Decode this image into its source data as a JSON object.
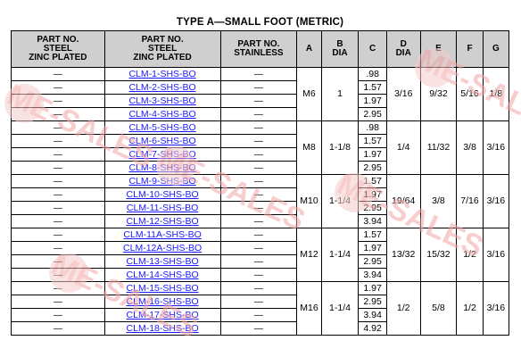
{
  "title": "TYPE A—SMALL FOOT (METRIC)",
  "headers": {
    "steel_zinc": [
      "PART NO.",
      "STEEL",
      "ZINC PLATED"
    ],
    "steel_zinc_link": [
      "PART NO.",
      "STEEL",
      "ZINC PLATED"
    ],
    "stainless": [
      "PART NO.",
      "STAINLESS"
    ],
    "a": "A",
    "b": [
      "B",
      "DIA"
    ],
    "c": "C",
    "d": [
      "D",
      "DIA"
    ],
    "e": "E",
    "f": "F",
    "g": "G"
  },
  "dash": "—",
  "groups": [
    {
      "a": "M6",
      "b": "1",
      "d": "3/16",
      "e": "9/32",
      "f": "5/16",
      "g": "1/8",
      "rows": [
        {
          "part": "CLM-1-SHS-BO",
          "c": ".98"
        },
        {
          "part": "CLM-2-SHS-BO",
          "c": "1.57"
        },
        {
          "part": "CLM-3-SHS-BO",
          "c": "1.97"
        },
        {
          "part": "CLM-4-SHS-BO",
          "c": "2.95"
        }
      ]
    },
    {
      "a": "M8",
      "b": "1-1/8",
      "d": "1/4",
      "e": "11/32",
      "f": "3/8",
      "g": "3/16",
      "rows": [
        {
          "part": "CLM-5-SHS-BO",
          "c": ".98"
        },
        {
          "part": "CLM-6-SHS-BO",
          "c": "1.57"
        },
        {
          "part": "CLM-7-SHS-BO",
          "c": "1.97"
        },
        {
          "part": "CLM-8-SHS-BO",
          "c": "2.95"
        }
      ]
    },
    {
      "a": "M10",
      "b": "1-1/4",
      "d": "19/64",
      "e": "3/8",
      "f": "7/16",
      "g": "3/16",
      "rows": [
        {
          "part": "CLM-9-SHS-BO",
          "c": "1.57"
        },
        {
          "part": "CLM-10-SHS-BO",
          "c": "1.97"
        },
        {
          "part": "CLM-11-SHS-BO",
          "c": "2.95"
        },
        {
          "part": "CLM-12-SHS-BO",
          "c": "3.94"
        }
      ]
    },
    {
      "a": "M12",
      "b": "1-1/4",
      "d": "13/32",
      "e": "15/32",
      "f": "1/2",
      "g": "3/16",
      "rows": [
        {
          "part": "CLM-11A-SHS-BO",
          "c": "1.57"
        },
        {
          "part": "CLM-12A-SHS-BO",
          "c": "1.97"
        },
        {
          "part": "CLM-13-SHS-BO",
          "c": "2.95"
        },
        {
          "part": "CLM-14-SHS-BO",
          "c": "3.94"
        }
      ]
    },
    {
      "a": "M16",
      "b": "1-1/4",
      "d": "1/2",
      "e": "5/8",
      "f": "1/2",
      "g": "3/16",
      "rows": [
        {
          "part": "CLM-15-SHS-BO",
          "c": "1.97"
        },
        {
          "part": "CLM-16-SHS-BO",
          "c": "2.95"
        },
        {
          "part": "CLM-17-SHS-BO",
          "c": "3.94"
        },
        {
          "part": "CLM-18-SHS-BO",
          "c": "4.92"
        }
      ]
    }
  ],
  "watermark": {
    "text": "ME-SALES",
    "colors": {
      "text": "#f2a6a6",
      "circle": "#f3cccc"
    }
  }
}
